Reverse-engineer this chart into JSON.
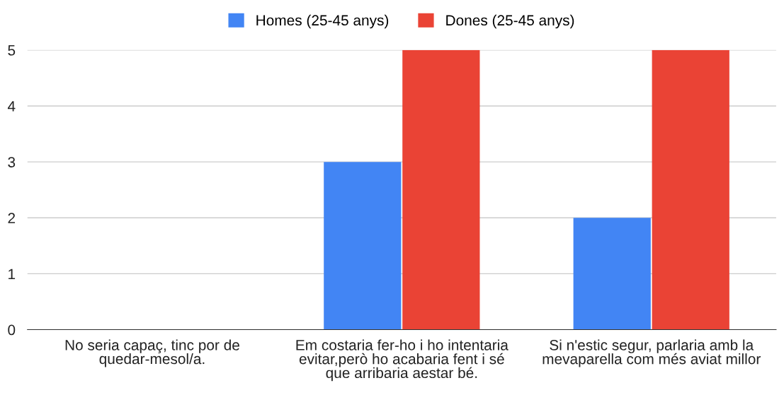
{
  "chart_data": {
    "type": "bar",
    "categories": [
      "No seria capaç, tinc por de quedar-mesol/a.",
      "Em costaria fer-ho i ho intentaria evitar,però ho acabaria fent i sé que arribaria aestar bé.",
      "Si n'estic segur, parlaria amb la mevaparella com més aviat millor"
    ],
    "series": [
      {
        "name": "Homes (25-45 anys)",
        "color": "#4285f4",
        "values": [
          0,
          3,
          2
        ]
      },
      {
        "name": "Dones (25-45 anys)",
        "color": "#ea4335",
        "values": [
          0,
          5,
          5
        ]
      }
    ],
    "ylim": [
      0,
      5
    ],
    "yticks": [
      0,
      1,
      2,
      3,
      4,
      5
    ],
    "grid": "y",
    "legend": "top"
  }
}
